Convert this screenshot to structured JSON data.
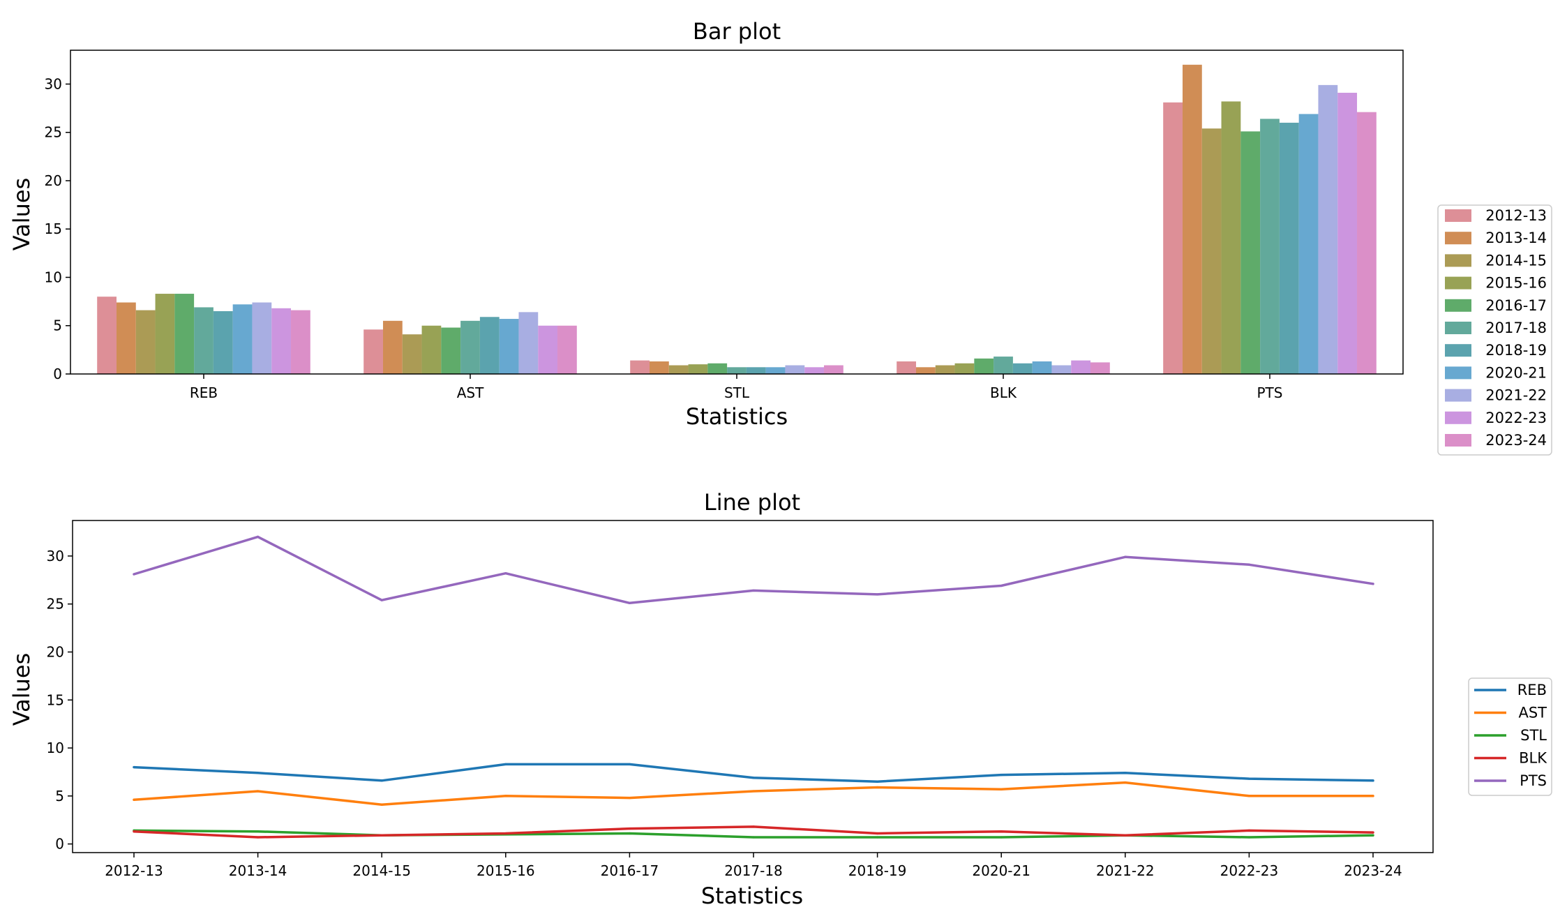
{
  "chart_data": [
    {
      "type": "bar",
      "title": "Bar plot",
      "xlabel": "Statistics",
      "ylabel": "Values",
      "ylim": [
        0,
        33.5
      ],
      "yticks": [
        0,
        5,
        10,
        15,
        20,
        25,
        30
      ],
      "categories": [
        "REB",
        "AST",
        "STL",
        "BLK",
        "PTS"
      ],
      "legend_position": "right",
      "series": [
        {
          "name": "2012-13",
          "color": "#dd8f97",
          "values": [
            8.0,
            4.6,
            1.4,
            1.3,
            28.1
          ]
        },
        {
          "name": "2013-14",
          "color": "#d08d55",
          "values": [
            7.4,
            5.5,
            1.3,
            0.7,
            32.0
          ]
        },
        {
          "name": "2014-15",
          "color": "#ab9b55",
          "values": [
            6.6,
            4.1,
            0.9,
            0.9,
            25.4
          ]
        },
        {
          "name": "2015-16",
          "color": "#98a255",
          "values": [
            8.3,
            5.0,
            1.0,
            1.1,
            28.2
          ]
        },
        {
          "name": "2016-17",
          "color": "#5fab6a",
          "values": [
            8.3,
            4.8,
            1.1,
            1.6,
            25.1
          ]
        },
        {
          "name": "2017-18",
          "color": "#62a99b",
          "values": [
            6.9,
            5.5,
            0.7,
            1.8,
            26.4
          ]
        },
        {
          "name": "2018-19",
          "color": "#5ba3ae",
          "values": [
            6.5,
            5.9,
            0.7,
            1.1,
            26.0
          ]
        },
        {
          "name": "2020-21",
          "color": "#67a8d0",
          "values": [
            7.2,
            5.7,
            0.7,
            1.3,
            26.9
          ]
        },
        {
          "name": "2021-22",
          "color": "#a8aee2",
          "values": [
            7.4,
            6.4,
            0.9,
            0.9,
            29.9
          ]
        },
        {
          "name": "2022-23",
          "color": "#cc95df",
          "values": [
            6.8,
            5.0,
            0.7,
            1.4,
            29.1
          ]
        },
        {
          "name": "2023-24",
          "color": "#db8fc8",
          "values": [
            6.6,
            5.0,
            0.9,
            1.2,
            27.1
          ]
        }
      ]
    },
    {
      "type": "line",
      "title": "Line plot",
      "xlabel": "Statistics",
      "ylabel": "Values",
      "ylim": [
        -0.9,
        33.7
      ],
      "yticks": [
        0,
        5,
        10,
        15,
        20,
        25,
        30
      ],
      "x": [
        "2012-13",
        "2013-14",
        "2014-15",
        "2015-16",
        "2016-17",
        "2017-18",
        "2018-19",
        "2020-21",
        "2021-22",
        "2022-23",
        "2023-24"
      ],
      "legend_position": "right",
      "series": [
        {
          "name": "REB",
          "color": "#1f77b4",
          "values": [
            8.0,
            7.4,
            6.6,
            8.3,
            8.3,
            6.9,
            6.5,
            7.2,
            7.4,
            6.8,
            6.6
          ]
        },
        {
          "name": "AST",
          "color": "#ff7f0e",
          "values": [
            4.6,
            5.5,
            4.1,
            5.0,
            4.8,
            5.5,
            5.9,
            5.7,
            6.4,
            5.0,
            5.0
          ]
        },
        {
          "name": "STL",
          "color": "#2ca02c",
          "values": [
            1.4,
            1.3,
            0.9,
            1.0,
            1.1,
            0.7,
            0.7,
            0.7,
            0.9,
            0.7,
            0.9
          ]
        },
        {
          "name": "BLK",
          "color": "#d62728",
          "values": [
            1.3,
            0.7,
            0.9,
            1.1,
            1.6,
            1.8,
            1.1,
            1.3,
            0.9,
            1.4,
            1.2
          ]
        },
        {
          "name": "PTS",
          "color": "#9467bd",
          "values": [
            28.1,
            32.0,
            25.4,
            28.2,
            25.1,
            26.4,
            26.0,
            26.9,
            29.9,
            29.1,
            27.1
          ]
        }
      ]
    }
  ]
}
